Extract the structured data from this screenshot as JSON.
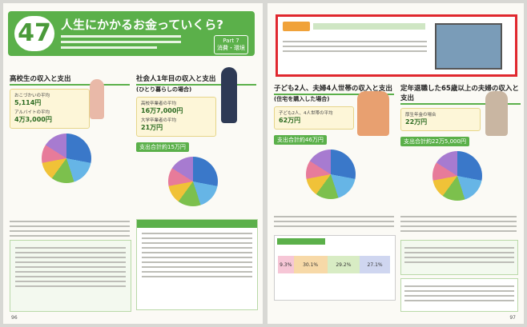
{
  "left_page": {
    "chapter": "47",
    "title": "人生にかかるお金っていくら?",
    "part": "Part 7",
    "part_name": "消費・環境",
    "page_number": "96",
    "sections": [
      {
        "title": "高校生の収入と支出",
        "items": [
          {
            "label": "おこづかいの平均",
            "amount": "5,114円"
          },
          {
            "label": "アルバイトの平均",
            "amount": "4万3,000円"
          }
        ]
      },
      {
        "title": "社会人1年目の収入と支出",
        "subtitle": "(ひとり暮らしの場合)",
        "items": [
          {
            "label": "高校卒業者の平均",
            "amount": "16万7,000円"
          },
          {
            "label": "大学卒業者の平均",
            "amount": "21万円"
          }
        ],
        "expense": "支出合計約15万円"
      }
    ]
  },
  "right_page": {
    "page_number": "97",
    "sections": [
      {
        "title": "子ども2人、夫婦4人世帯の収入と支出",
        "subtitle": "(住宅を購入した場合)",
        "items": [
          {
            "label": "子ども2人、4人世帯の平均",
            "amount": "62万円"
          }
        ],
        "expense": "支出合計約46万円"
      },
      {
        "title": "定年退職した65歳以上の夫婦の収入と支出",
        "items": [
          {
            "label": "厚生年金の場合",
            "amount": "22万円"
          }
        ],
        "expense": "支出合計約22万5,000円"
      }
    ],
    "percent_bar": [
      "9.3%",
      "30.1%",
      "29.2%",
      "27.1%"
    ]
  }
}
